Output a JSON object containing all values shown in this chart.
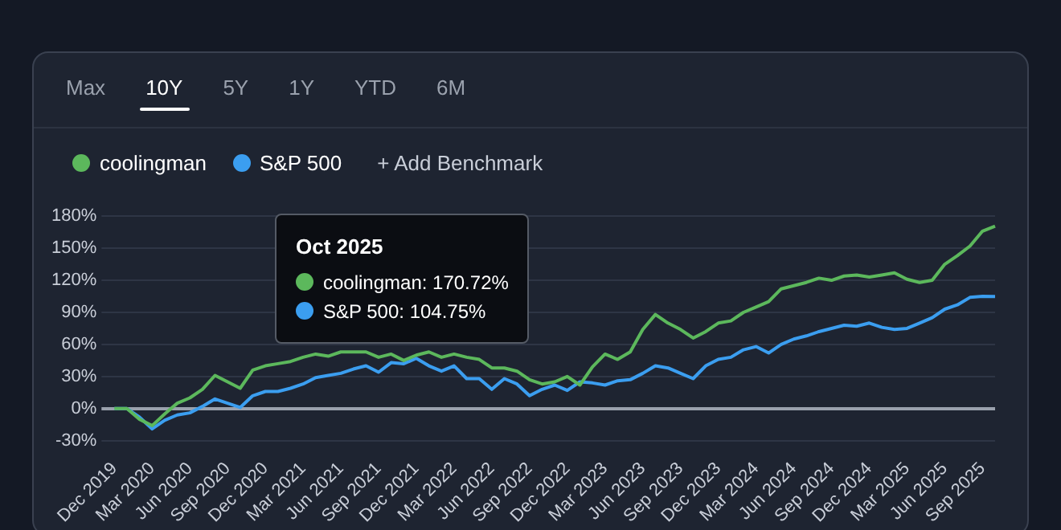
{
  "chart_data": {
    "type": "line",
    "categories": [
      "Dec 2019",
      null,
      null,
      "Mar 2020",
      null,
      null,
      "Jun 2020",
      null,
      null,
      "Sep 2020",
      null,
      null,
      "Dec 2020",
      null,
      null,
      "Mar 2021",
      null,
      null,
      "Jun 2021",
      null,
      null,
      "Sep 2021",
      null,
      null,
      "Dec 2021",
      null,
      null,
      "Mar 2022",
      null,
      null,
      "Jun 2022",
      null,
      null,
      "Sep 2022",
      null,
      null,
      "Dec 2022",
      null,
      null,
      "Mar 2023",
      null,
      null,
      "Jun 2023",
      null,
      null,
      "Sep 2023",
      null,
      null,
      "Dec 2023",
      null,
      null,
      "Mar 2024",
      null,
      null,
      "Jun 2024",
      null,
      null,
      "Sep 2024",
      null,
      null,
      "Dec 2024",
      null,
      null,
      "Mar 2025",
      null,
      null,
      "Jun 2025",
      null,
      null,
      "Sep 2025",
      null
    ],
    "series": [
      {
        "name": "coolingman",
        "color": "#5cb85c",
        "values": [
          0,
          0,
          -10,
          -16,
          -5,
          5,
          10,
          18,
          31,
          25,
          19,
          36,
          40,
          42,
          44,
          48,
          51,
          49,
          53,
          53,
          53,
          48,
          51,
          45,
          50,
          53,
          48,
          51,
          48,
          46,
          38,
          38,
          35,
          27,
          23,
          25,
          30,
          22,
          39,
          51,
          46,
          53,
          74,
          88,
          80,
          74,
          66,
          72,
          80,
          82,
          90,
          95,
          100,
          112,
          115,
          118,
          122,
          120,
          124,
          125,
          123,
          125,
          127,
          121,
          118,
          120,
          135,
          143,
          152,
          166,
          170.72
        ]
      },
      {
        "name": "S&P 500",
        "color": "#3b9ef0",
        "values": [
          0,
          0,
          -8,
          -19,
          -11,
          -6,
          -4,
          2,
          9,
          5,
          1,
          12,
          16,
          16,
          19,
          23,
          29,
          31,
          33,
          37,
          40,
          34,
          43,
          42,
          47,
          40,
          35,
          40,
          28,
          28,
          18,
          28,
          23,
          12,
          18,
          22,
          17,
          25,
          24,
          22,
          26,
          27,
          33,
          40,
          38,
          33,
          28,
          40,
          46,
          48,
          55,
          58,
          52,
          60,
          65,
          68,
          72,
          75,
          78,
          77,
          80,
          76,
          74,
          75,
          80,
          85,
          93,
          97,
          104,
          105,
          104.75
        ]
      }
    ],
    "ylim": [
      -30,
      180
    ],
    "yticks": [
      {
        "value": -30,
        "label": "-30%"
      },
      {
        "value": 0,
        "label": "0%"
      },
      {
        "value": 30,
        "label": "30%"
      },
      {
        "value": 60,
        "label": "60%"
      },
      {
        "value": 90,
        "label": "90%"
      },
      {
        "value": 120,
        "label": "120%"
      },
      {
        "value": 150,
        "label": "150%"
      },
      {
        "value": 180,
        "label": "180%"
      }
    ],
    "grid": "y",
    "legend": "top left",
    "marker": "none",
    "line_style": "solid",
    "annotations": [
      "Max",
      "10Y",
      "5Y",
      "1Y",
      "YTD",
      "6M",
      "+ Add Benchmark",
      "Oct 2025",
      "coolingman: 170.72%",
      "S&P 500: 104.75%"
    ]
  }
}
